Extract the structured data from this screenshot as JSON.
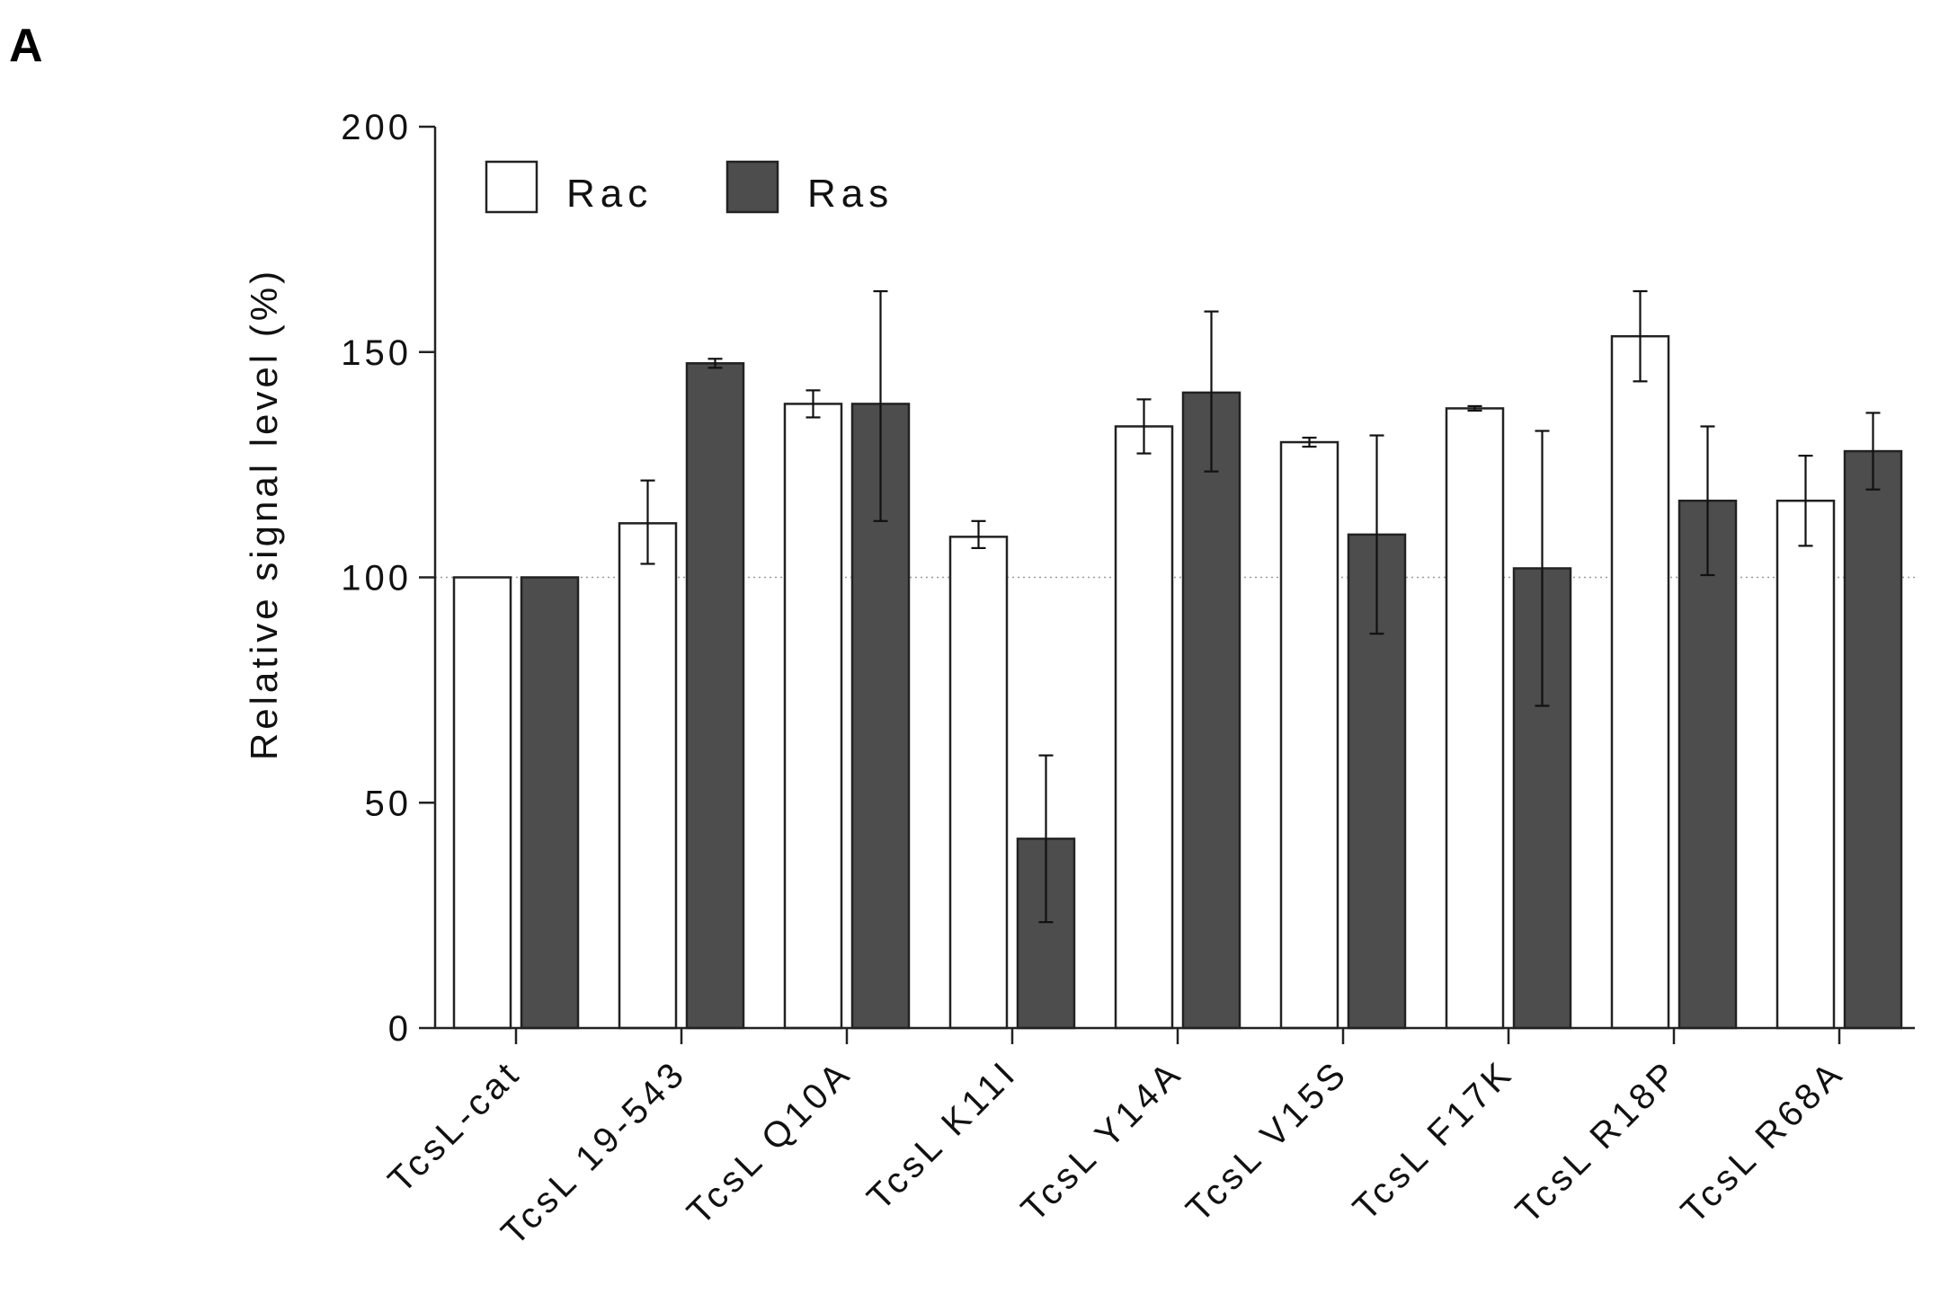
{
  "panel_label": "A",
  "colors": {
    "rac": "#ffffff",
    "ras": "#4d4d4d",
    "axis": "#222222",
    "ref_line": "#9a9a9a"
  },
  "chart_data": {
    "type": "bar",
    "title": "",
    "xlabel": "",
    "ylabel": "Relative signal level (%)",
    "ylim": [
      0,
      200
    ],
    "yticks": [
      0,
      50,
      100,
      150,
      200
    ],
    "reference_line": 100,
    "legend_position": "top-left",
    "categories": [
      "TcsL-cat",
      "TcsL 19-543",
      "TcsL Q10A",
      "TcsL K11I",
      "TcsL Y14A",
      "TcsL V15S",
      "TcsL F17K",
      "TcsL R18P",
      "TcsL R68A"
    ],
    "series": [
      {
        "name": "Rac",
        "color": "#ffffff",
        "values": [
          100,
          112,
          138.5,
          109,
          133.5,
          130,
          137.5,
          153.5,
          117
        ],
        "err_low": [
          100,
          103,
          135.5,
          106.5,
          127.5,
          129,
          137,
          143.5,
          107
        ],
        "err_high": [
          100,
          121.5,
          141.5,
          112.5,
          139.5,
          131,
          138,
          163.5,
          127
        ]
      },
      {
        "name": "Ras",
        "color": "#4d4d4d",
        "values": [
          100,
          147.5,
          138.5,
          42,
          141,
          109.5,
          102,
          117,
          128
        ],
        "err_low": [
          100,
          146.5,
          112.5,
          23.5,
          123.5,
          87.5,
          71.5,
          100.5,
          119.5
        ],
        "err_high": [
          100,
          148.5,
          163.5,
          60.5,
          159,
          131.5,
          132.5,
          133.5,
          136.5
        ]
      }
    ]
  }
}
